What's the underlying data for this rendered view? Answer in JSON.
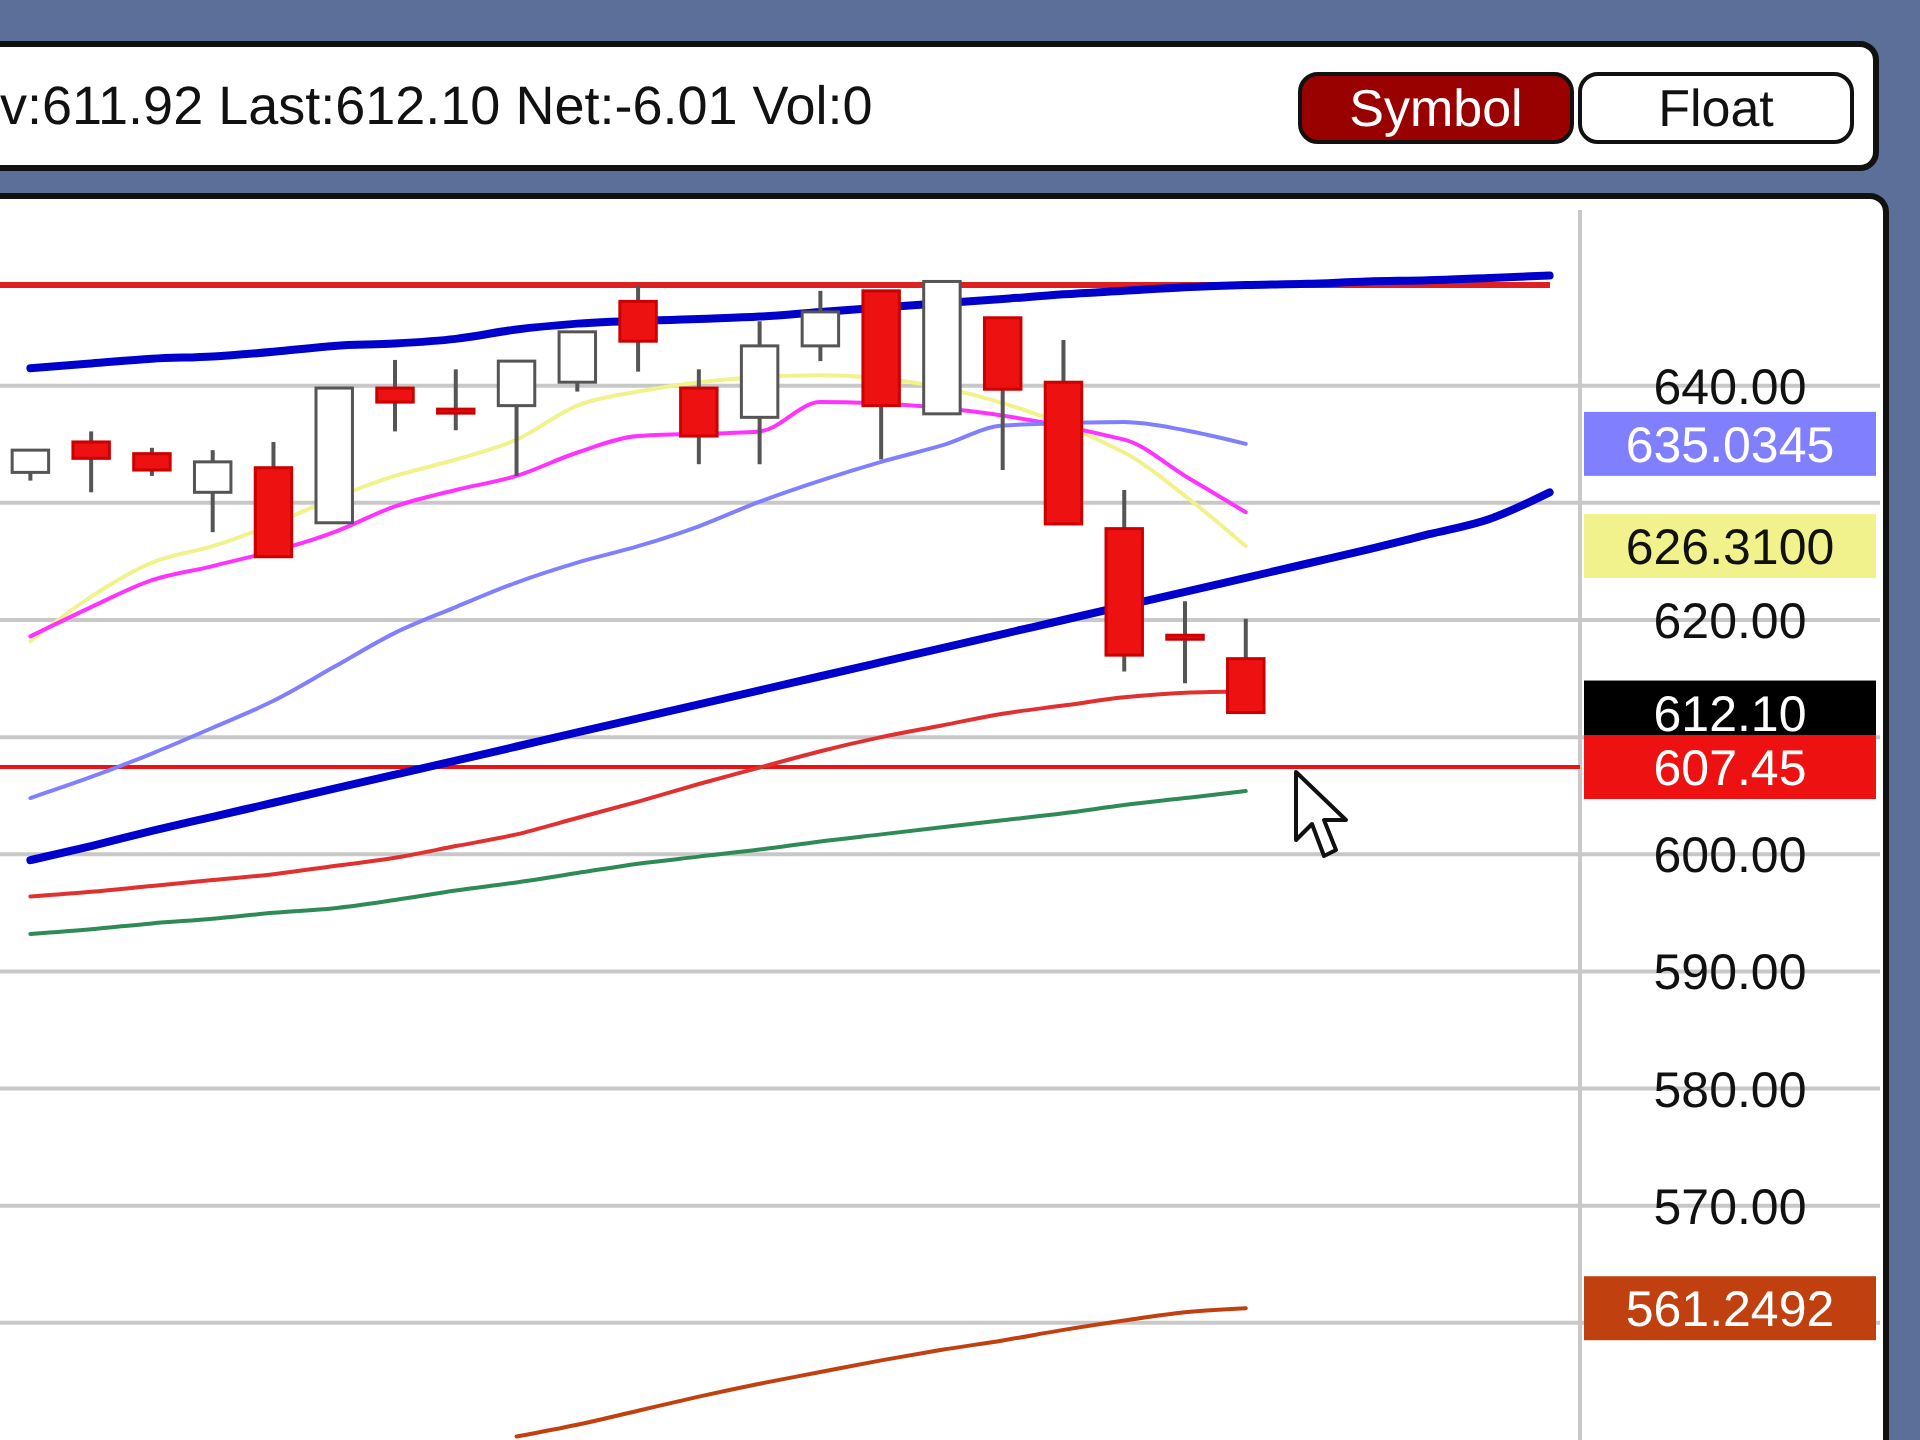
{
  "chart_data": {
    "type": "candlestick",
    "title": "v:611.92  Last:612.10  Net:-6.01  Vol:0",
    "categories": [
      null,
      null,
      null,
      null,
      null,
      null,
      null,
      null,
      null,
      null,
      null,
      null,
      null,
      null,
      null,
      null,
      null,
      null,
      null,
      null,
      null,
      null,
      null,
      null,
      null,
      null
    ],
    "ohlc": [
      [
        632.6,
        634.5,
        631.9,
        634.5
      ],
      [
        635.2,
        636.1,
        630.9,
        633.8
      ],
      [
        634.2,
        634.7,
        632.3,
        632.8
      ],
      [
        630.9,
        634.5,
        627.5,
        633.5
      ],
      [
        633.0,
        635.2,
        625.4,
        625.4
      ],
      [
        628.3,
        639.8,
        628.3,
        639.8
      ],
      [
        639.8,
        642.2,
        636.1,
        638.6
      ],
      [
        638.0,
        641.4,
        636.2,
        637.9
      ],
      [
        638.3,
        642.1,
        632.3,
        642.1
      ],
      [
        640.3,
        644.6,
        639.5,
        644.6
      ],
      [
        647.2,
        648.6,
        641.2,
        643.8
      ],
      [
        639.8,
        641.4,
        633.3,
        635.7
      ],
      [
        637.3,
        645.5,
        633.3,
        643.4
      ],
      [
        643.4,
        648.1,
        642.1,
        646.3
      ],
      [
        648.1,
        648.1,
        633.7,
        638.3
      ],
      [
        637.6,
        648.9,
        637.6,
        648.9
      ],
      [
        645.8,
        645.8,
        632.8,
        639.7
      ],
      [
        640.3,
        643.9,
        628.2,
        628.2
      ],
      [
        627.8,
        631.1,
        615.6,
        617.0
      ],
      [
        618.7,
        621.6,
        614.6,
        618.5
      ],
      [
        616.7,
        620.1,
        612.1,
        612.1
      ],
      null,
      null,
      null,
      null,
      null
    ],
    "series": [
      {
        "type": "line",
        "color": "#0000cc",
        "values": [
          641.5,
          641.9,
          642.3,
          642.5,
          642.9,
          643.4,
          643.6,
          644.0,
          644.8,
          645.3,
          null,
          645.7,
          645.9,
          646.3,
          null,
          null,
          647.4,
          647.8,
          648.1,
          648.4,
          648.6,
          648.7,
          648.9,
          649.0,
          649.2,
          649.4
        ]
      },
      {
        "type": "line",
        "color": "#0000cc",
        "values": [
          599.5,
          600.7,
          602.0,
          603.2,
          604.4,
          605.6,
          606.8,
          608.0,
          609.2,
          610.4,
          611.6,
          612.8,
          614.0,
          615.2,
          616.4,
          617.6,
          618.8,
          620.0,
          null,
          622.4,
          623.6,
          624.8,
          626.0,
          627.3,
          628.6,
          630.9
        ]
      },
      {
        "type": "line",
        "color": "#f2f28c",
        "values": [
          618.2,
          622.0,
          624.9,
          626.3,
          null,
          null,
          632.3,
          633.7,
          635.4,
          638.3,
          639.5,
          640.3,
          null,
          640.9,
          null,
          null,
          null,
          null,
          634.3,
          630.6,
          626.31,
          null,
          null,
          null,
          null,
          null
        ]
      },
      {
        "type": "line",
        "color": "#ff33ff",
        "values": [
          618.6,
          621.1,
          623.4,
          624.6,
          null,
          627.5,
          629.7,
          631.1,
          632.3,
          634.3,
          635.7,
          null,
          636.1,
          638.6,
          null,
          null,
          null,
          null,
          635.4,
          632.3,
          629.2,
          null,
          null,
          null,
          null,
          null
        ]
      },
      {
        "type": "line",
        "color": "#8080ff",
        "values": [
          604.8,
          606.6,
          608.6,
          610.8,
          613.1,
          616.0,
          618.9,
          621.1,
          623.2,
          624.9,
          626.3,
          628.0,
          630.1,
          631.9,
          633.5,
          634.9,
          636.6,
          null,
          636.9,
          636.2,
          635.0345,
          null,
          null,
          null,
          null,
          null
        ]
      },
      {
        "type": "line",
        "color": "#e03030",
        "values": [
          596.4,
          596.8,
          597.3,
          597.8,
          598.3,
          599.0,
          599.7,
          600.7,
          601.7,
          603.1,
          604.5,
          606.0,
          607.4,
          608.8,
          610.0,
          611.0,
          612.0,
          612.7,
          613.4,
          613.8,
          613.9,
          null,
          null,
          null,
          null,
          null
        ]
      },
      {
        "type": "line",
        "color": "#2e8b57",
        "values": [
          593.2,
          593.6,
          594.1,
          594.5,
          595.0,
          595.4,
          596.1,
          596.9,
          597.6,
          598.4,
          599.2,
          599.8,
          600.4,
          601.1,
          601.7,
          602.3,
          602.9,
          603.5,
          604.2,
          604.8,
          605.4,
          null,
          null,
          null,
          null,
          null
        ]
      },
      {
        "type": "line",
        "color": "#c04010",
        "values": [
          null,
          null,
          null,
          null,
          null,
          null,
          null,
          null,
          550.3,
          551.3,
          552.5,
          553.7,
          554.8,
          555.8,
          556.8,
          557.7,
          558.5,
          559.4,
          560.2,
          560.9,
          561.2492,
          null,
          null,
          null,
          null,
          null
        ]
      }
    ],
    "ylim": [
      550,
      655
    ],
    "yticks": [
      {
        "value": 560,
        "label": null
      },
      {
        "value": 570,
        "label": "570.00"
      },
      {
        "value": 580,
        "label": "580.00"
      },
      {
        "value": 590,
        "label": "590.00"
      },
      {
        "value": 600,
        "label": "600.00"
      },
      {
        "value": 610,
        "label": null
      },
      {
        "value": 620,
        "label": "620.00"
      },
      {
        "value": 630,
        "label": null
      },
      {
        "value": 640,
        "label": "640.00"
      },
      {
        "value": 635.0345,
        "label": "635.0345"
      },
      {
        "value": 626.31,
        "label": "626.3100"
      },
      {
        "value": 612.1,
        "label": "612.10"
      },
      {
        "value": 561.2492,
        "label": "561.2492"
      }
    ],
    "grid": "y",
    "ref_lines": [
      {
        "axis": "y",
        "value": 648.6,
        "color": "#e02020"
      },
      {
        "axis": "y",
        "value": 607.45,
        "label": "607.45",
        "color": "#ee1111"
      }
    ],
    "annotations": [
      "Symbol",
      "Float"
    ]
  }
}
